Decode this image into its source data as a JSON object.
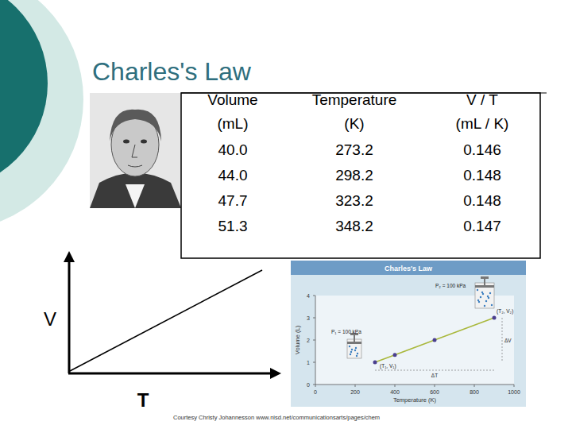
{
  "slide": {
    "title": "Charles's Law"
  },
  "table": {
    "columns": [
      {
        "name": "Volume",
        "unit": "(mL)"
      },
      {
        "name": "Temperature",
        "unit": "(K)"
      },
      {
        "name": "V / T",
        "unit": "(mL / K)"
      }
    ],
    "rows": [
      [
        "40.0",
        "273.2",
        "0.146"
      ],
      [
        "44.0",
        "298.2",
        "0.148"
      ],
      [
        "47.7",
        "323.2",
        "0.148"
      ],
      [
        "51.3",
        "348.2",
        "0.147"
      ]
    ]
  },
  "sketch": {
    "y_label": "V",
    "x_label": "T"
  },
  "chart_data": {
    "type": "line",
    "title": "Charles's Law",
    "x_label": "Temperature (K)",
    "y_label": "Volume (L)",
    "x": [
      300,
      400,
      600,
      900
    ],
    "values": [
      1,
      1.33,
      2,
      3
    ],
    "color": "#a9b83c",
    "marker": "circle",
    "xlim": [
      0,
      1000
    ],
    "xticks": [
      0,
      200,
      400,
      600,
      800,
      1000
    ],
    "ylim": [
      0,
      4
    ],
    "yticks": [
      0,
      1,
      2,
      3,
      4
    ],
    "grid": false,
    "annotations": [
      "P₁ = 100 kPa",
      "P₂ = 100 kPa",
      "(T₁, V₁)",
      "(T₂, V₂)",
      "ΔT",
      "ΔV"
    ]
  },
  "credit": "Courtesy Christy Johannesson www.nisd.net/communicationsarts/pages/chem"
}
